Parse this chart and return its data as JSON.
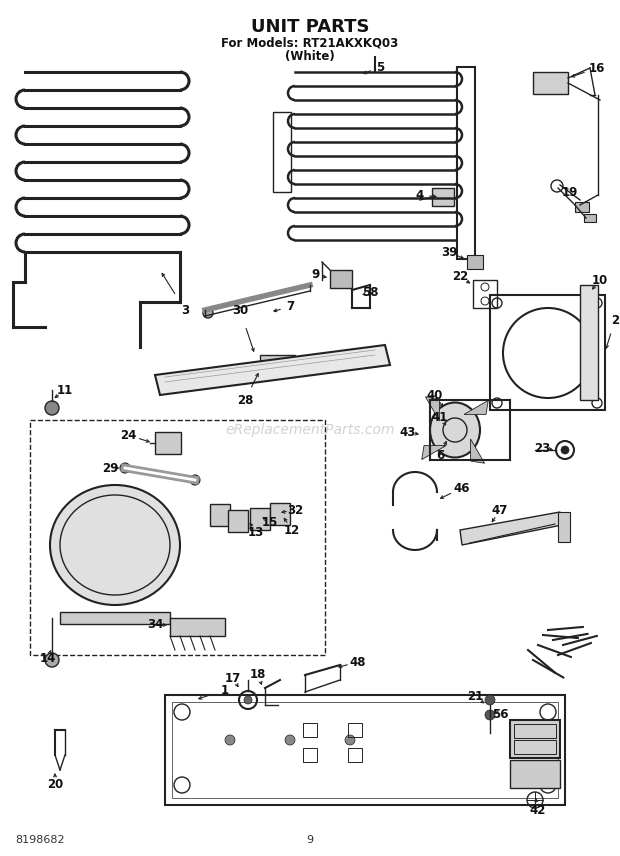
{
  "title": "UNIT PARTS",
  "subtitle1": "For Models: RT21AKXKQ03",
  "subtitle2": "(White)",
  "page_num": "9",
  "part_num": "8198682",
  "bg_color": "#ffffff",
  "text_color": "#111111",
  "c": "#222222",
  "watermark": "eReplacementParts.com",
  "figw": 6.2,
  "figh": 8.56,
  "dpi": 100
}
